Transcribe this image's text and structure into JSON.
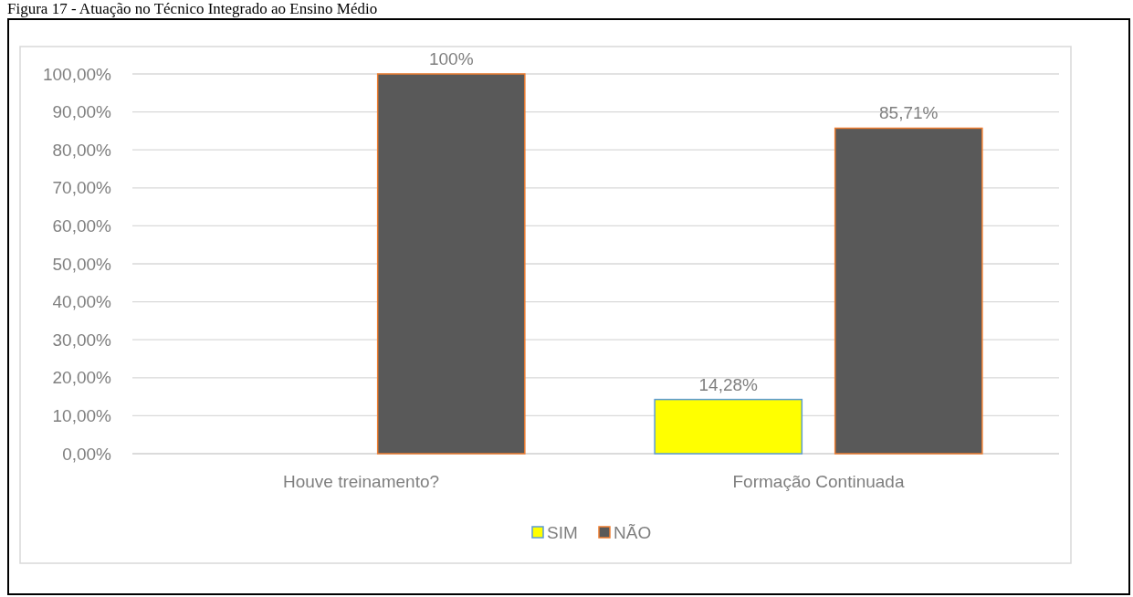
{
  "chart_data": {
    "type": "bar",
    "title": "Figura 17 - Atuação no Técnico Integrado ao Ensino Médio",
    "categories": [
      "Houve treinamento?",
      "Formação Continuada"
    ],
    "series": [
      {
        "name": "SIM",
        "color": "#ffff00",
        "values": [
          null,
          14.28
        ],
        "value_labels": [
          null,
          "14,28%"
        ]
      },
      {
        "name": "NÃO",
        "color": "#595959",
        "values": [
          100,
          85.71
        ],
        "value_labels": [
          "100%",
          "85,71%"
        ]
      }
    ],
    "ylim": [
      0,
      100
    ],
    "yticks": [
      {
        "value": 0,
        "label": "0,00%"
      },
      {
        "value": 10,
        "label": "10,00%"
      },
      {
        "value": 20,
        "label": "20,00%"
      },
      {
        "value": 30,
        "label": "30,00%"
      },
      {
        "value": 40,
        "label": "40,00%"
      },
      {
        "value": 50,
        "label": "50,00%"
      },
      {
        "value": 60,
        "label": "60,00%"
      },
      {
        "value": 70,
        "label": "70,00%"
      },
      {
        "value": 80,
        "label": "80,00%"
      },
      {
        "value": 90,
        "label": "90,00%"
      },
      {
        "value": 100,
        "label": "100,00%"
      }
    ],
    "grid": "y",
    "legend": "bottom"
  }
}
